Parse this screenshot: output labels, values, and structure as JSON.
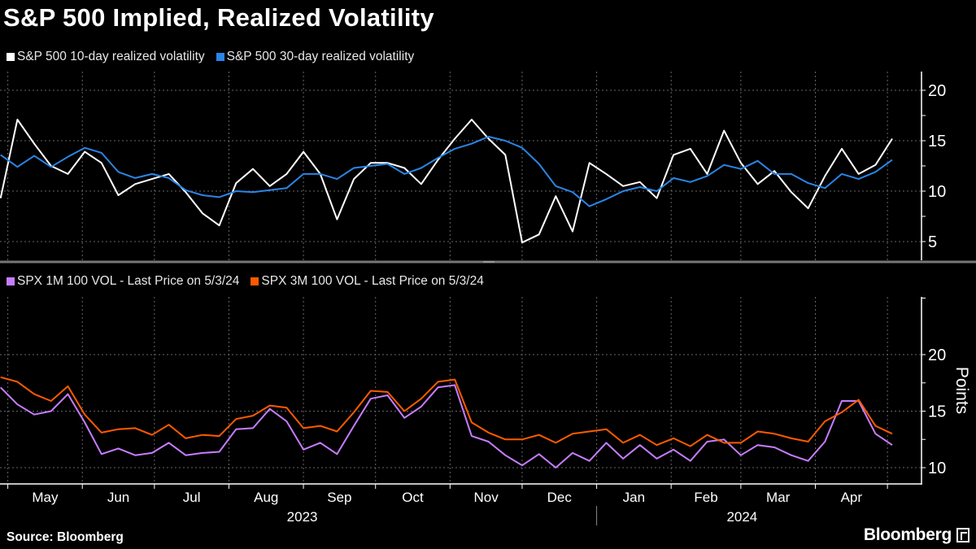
{
  "title": "S&P 500 Implied, Realized Volatility",
  "source": "Source: Bloomberg",
  "logo": "Bloomberg",
  "chart_data": [
    {
      "type": "line",
      "legend_placement": "top-left",
      "grid": true,
      "ylim": [
        3,
        22
      ],
      "yticks": [
        "5",
        "10",
        "15",
        "20"
      ],
      "x": [
        "2023-04-28",
        "2023-05-05",
        "2023-05-12",
        "2023-05-19",
        "2023-05-26",
        "2023-06-02",
        "2023-06-09",
        "2023-06-16",
        "2023-06-23",
        "2023-06-30",
        "2023-07-07",
        "2023-07-14",
        "2023-07-21",
        "2023-07-28",
        "2023-08-04",
        "2023-08-11",
        "2023-08-18",
        "2023-08-25",
        "2023-09-01",
        "2023-09-08",
        "2023-09-15",
        "2023-09-22",
        "2023-09-29",
        "2023-10-06",
        "2023-10-13",
        "2023-10-20",
        "2023-10-27",
        "2023-11-03",
        "2023-11-10",
        "2023-11-17",
        "2023-11-24",
        "2023-12-01",
        "2023-12-08",
        "2023-12-15",
        "2023-12-22",
        "2023-12-29",
        "2024-01-05",
        "2024-01-12",
        "2024-01-19",
        "2024-01-26",
        "2024-02-02",
        "2024-02-09",
        "2024-02-16",
        "2024-02-23",
        "2024-03-01",
        "2024-03-08",
        "2024-03-15",
        "2024-03-22",
        "2024-03-29",
        "2024-04-05",
        "2024-04-12",
        "2024-04-19",
        "2024-04-26",
        "2024-05-03"
      ],
      "series": [
        {
          "name": "S&P 500 10-day realized volatility",
          "color": "#ffffff",
          "values": [
            9.3,
            17.1,
            14.7,
            12.5,
            11.7,
            13.9,
            12.8,
            9.6,
            10.7,
            11.2,
            11.7,
            9.9,
            7.8,
            6.6,
            10.8,
            12.2,
            10.5,
            11.7,
            13.9,
            11.7,
            7.2,
            11.2,
            12.8,
            12.8,
            12.3,
            10.7,
            13.1,
            15.2,
            17.1,
            15.2,
            13.6,
            4.9,
            5.7,
            9.5,
            6.0,
            12.8,
            11.7,
            10.5,
            10.9,
            9.3,
            13.6,
            14.2,
            11.7,
            16.0,
            12.8,
            10.7,
            12.0,
            9.9,
            8.3,
            11.5,
            14.2,
            11.7,
            12.6,
            15.2
          ]
        },
        {
          "name": "S&P 500 30-day realized volatility",
          "color": "#2a85e6",
          "values": [
            13.6,
            12.4,
            13.5,
            12.4,
            13.4,
            14.3,
            13.8,
            11.9,
            11.3,
            11.7,
            11.3,
            10.1,
            9.6,
            9.4,
            10.0,
            9.9,
            10.1,
            10.3,
            11.7,
            11.7,
            11.2,
            12.3,
            12.5,
            12.7,
            11.7,
            12.3,
            13.3,
            14.2,
            14.7,
            15.4,
            15.0,
            14.3,
            12.7,
            10.5,
            9.9,
            8.5,
            9.2,
            10.0,
            10.4,
            10.0,
            11.3,
            10.9,
            11.5,
            12.6,
            12.2,
            13.0,
            11.7,
            11.7,
            10.8,
            10.3,
            11.7,
            11.2,
            11.9,
            13.1
          ]
        }
      ]
    },
    {
      "type": "line",
      "legend_placement": "top-left",
      "grid": true,
      "ylim": [
        8.6,
        25
      ],
      "yticks": [
        "10",
        "15",
        "20"
      ],
      "ylabel": "Points",
      "xticks": [
        "May",
        "Jun",
        "Jul",
        "Aug",
        "Sep",
        "Oct",
        "Nov",
        "Dec",
        "Jan",
        "Feb",
        "Mar",
        "Apr"
      ],
      "years": [
        "2023",
        "2024"
      ],
      "x_ref": 0,
      "series": [
        {
          "name": "SPX 1M 100 VOL - Last Price on 5/3/24",
          "color": "#c77dff",
          "values": [
            17.1,
            15.6,
            14.7,
            15.0,
            16.5,
            14.0,
            11.2,
            11.7,
            11.1,
            11.3,
            12.2,
            11.1,
            11.3,
            11.4,
            13.4,
            13.5,
            15.2,
            14.1,
            11.6,
            12.2,
            11.2,
            13.7,
            16.1,
            16.4,
            14.4,
            15.4,
            17.1,
            17.3,
            12.8,
            12.3,
            11.1,
            10.2,
            11.2,
            10.0,
            11.3,
            10.6,
            12.2,
            10.8,
            12.0,
            10.8,
            11.6,
            10.6,
            12.3,
            12.5,
            11.1,
            12.0,
            11.8,
            11.1,
            10.6,
            12.3,
            15.9,
            15.9,
            13.0,
            12.0
          ]
        },
        {
          "name": "SPX 3M 100 VOL - Last Price on 5/3/24",
          "color": "#ff5a00",
          "values": [
            18.0,
            17.6,
            16.5,
            15.9,
            17.2,
            14.7,
            13.1,
            13.4,
            13.5,
            12.9,
            13.8,
            12.6,
            12.9,
            12.8,
            14.3,
            14.6,
            15.5,
            15.3,
            13.5,
            13.7,
            13.2,
            14.9,
            16.8,
            16.7,
            15.0,
            16.1,
            17.6,
            17.8,
            14.0,
            13.1,
            12.5,
            12.5,
            12.9,
            12.2,
            13.0,
            13.2,
            13.4,
            12.2,
            12.9,
            12.0,
            12.6,
            11.9,
            12.9,
            12.2,
            12.2,
            13.2,
            13.0,
            12.6,
            12.3,
            14.1,
            14.9,
            16.0,
            13.7,
            13.0
          ]
        }
      ]
    }
  ]
}
